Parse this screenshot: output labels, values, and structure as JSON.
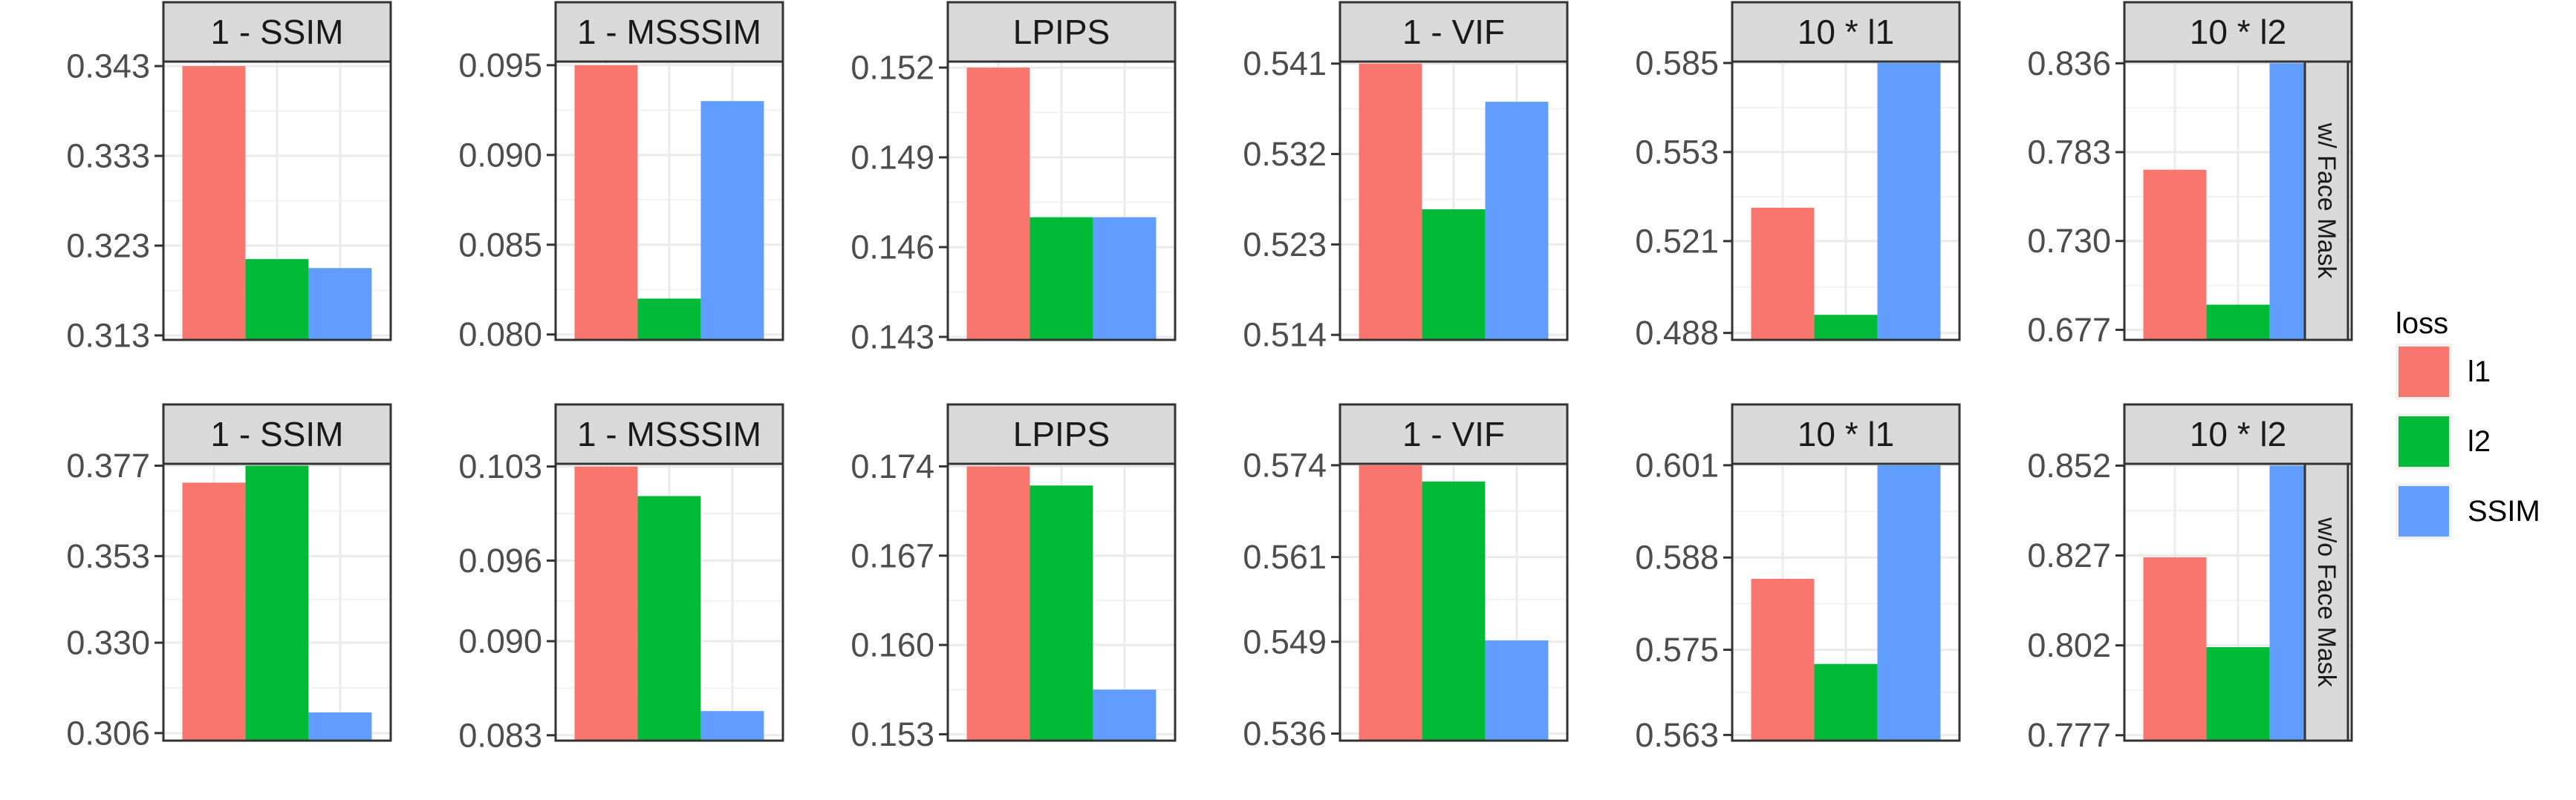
{
  "chart_data": {
    "type": "bar",
    "facet_cols": [
      "1 - SSIM",
      "1 - MSSSIM",
      "LPIPS",
      "1 - VIF",
      "10 * l1",
      "10 * l2"
    ],
    "facet_rows": [
      "w/ Face Mask",
      "w/o Face Mask"
    ],
    "legend": {
      "title": "loss",
      "placement": "right",
      "entries": [
        {
          "name": "l1",
          "color": "#F8766D"
        },
        {
          "name": "l2",
          "color": "#00BA38"
        },
        {
          "name": "SSIM",
          "color": "#619CFF"
        }
      ]
    },
    "grid": true,
    "panels": [
      [
        {
          "ticks": [
            "0.313",
            "0.323",
            "0.333",
            "0.343"
          ],
          "ylim": [
            0.3125,
            0.3435
          ],
          "values": [
            0.343,
            0.3215,
            0.3205
          ]
        },
        {
          "ticks": [
            "0.080",
            "0.085",
            "0.090",
            "0.095"
          ],
          "ylim": [
            0.0797,
            0.0952
          ],
          "values": [
            0.095,
            0.082,
            0.093
          ]
        },
        {
          "ticks": [
            "0.143",
            "0.146",
            "0.149",
            "0.152"
          ],
          "ylim": [
            0.1429,
            0.1522
          ],
          "values": [
            0.152,
            0.147,
            0.147
          ]
        },
        {
          "ticks": [
            "0.514",
            "0.523",
            "0.532",
            "0.541"
          ],
          "ylim": [
            0.5135,
            0.5412
          ],
          "values": [
            0.541,
            0.5265,
            0.5372
          ]
        },
        {
          "ticks": [
            "0.488",
            "0.521",
            "0.553",
            "0.585"
          ],
          "ylim": [
            0.4855,
            0.5855
          ],
          "values": [
            0.533,
            0.4945,
            0.585
          ]
        },
        {
          "ticks": [
            "0.677",
            "0.730",
            "0.783",
            "0.836"
          ],
          "ylim": [
            0.671,
            0.837
          ],
          "values": [
            0.7725,
            0.692,
            0.836
          ]
        }
      ],
      [
        {
          "ticks": [
            "0.306",
            "0.330",
            "0.353",
            "0.377"
          ],
          "ylim": [
            0.304,
            0.3775
          ],
          "values": [
            0.3725,
            0.377,
            0.3115
          ]
        },
        {
          "ticks": [
            "0.083",
            "0.090",
            "0.096",
            "0.103"
          ],
          "ylim": [
            0.0826,
            0.1032
          ],
          "values": [
            0.103,
            0.1008,
            0.0848
          ]
        },
        {
          "ticks": [
            "0.153",
            "0.160",
            "0.167",
            "0.174"
          ],
          "ylim": [
            0.1525,
            0.1742
          ],
          "values": [
            0.174,
            0.1725,
            0.1565
          ]
        },
        {
          "ticks": [
            "0.536",
            "0.549",
            "0.561",
            "0.574"
          ],
          "ylim": [
            0.535,
            0.5742
          ],
          "values": [
            0.574,
            0.5717,
            0.5492
          ]
        },
        {
          "ticks": [
            "0.563",
            "0.575",
            "0.588",
            "0.601"
          ],
          "ylim": [
            0.5622,
            0.6012
          ],
          "values": [
            0.585,
            0.573,
            0.601
          ]
        },
        {
          "ticks": [
            "0.777",
            "0.802",
            "0.827",
            "0.852"
          ],
          "ylim": [
            0.7755,
            0.8525
          ],
          "values": [
            0.8265,
            0.8015,
            0.852
          ]
        }
      ]
    ]
  }
}
